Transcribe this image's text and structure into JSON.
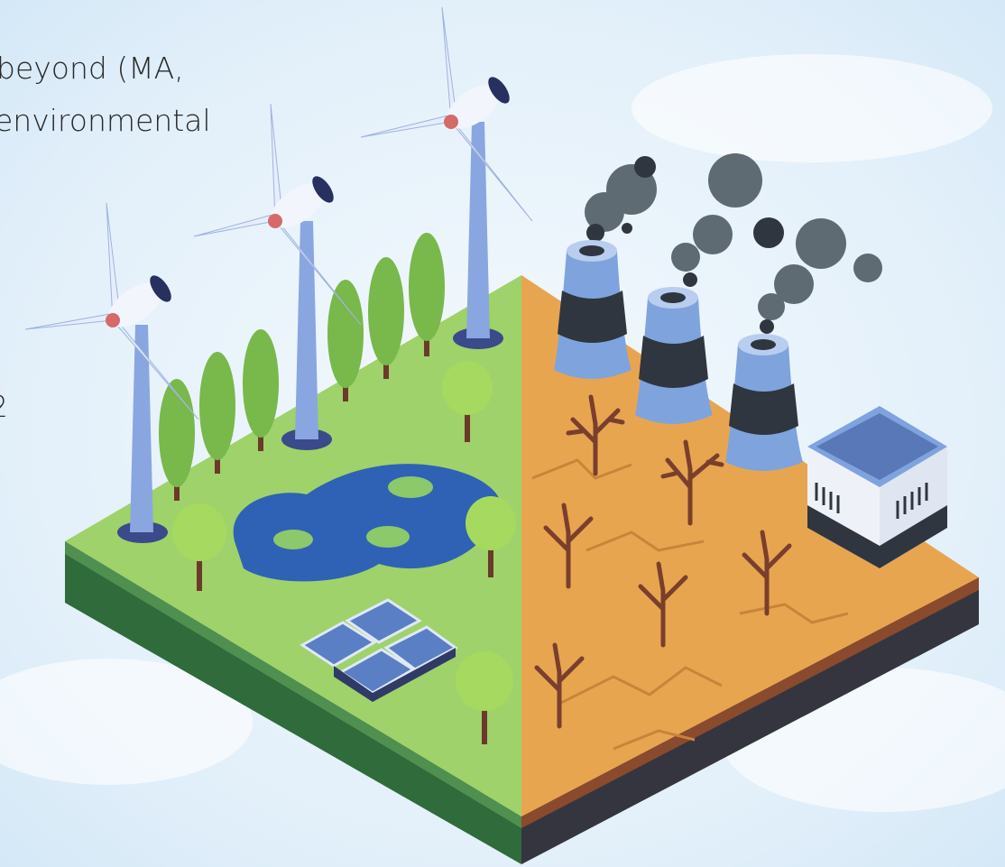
{
  "text": {
    "lines": [
      "beyond (MA,",
      "environmental",
      "2"
    ]
  }
}
